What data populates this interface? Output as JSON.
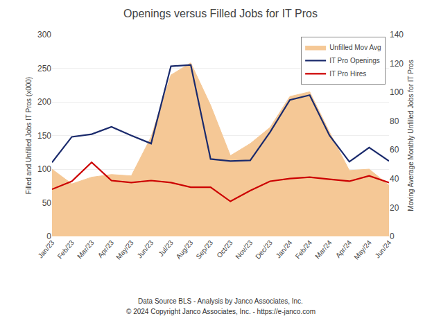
{
  "chart_data": {
    "type": "line",
    "title": "Openings versus Filled Jobs for IT Pros",
    "categories": [
      "Jan/23",
      "Feb/23",
      "Mar/23",
      "Apr/23",
      "May/23",
      "Jun/23",
      "Jul/23",
      "Aug/23",
      "Sep/23",
      "Oct/23",
      "Nov/23",
      "Dec/23",
      "Jan/24",
      "Feb/24",
      "Mar/24",
      "Apr/24",
      "May/24",
      "Jun/24"
    ],
    "ylabel": "Filled and Unfilled Jobs IT Pros (x000)",
    "y2label": "Moving Average Monthly Unfilled Jobs for IT Pros",
    "ylim": [
      0,
      300
    ],
    "yticks": [
      0,
      50,
      100,
      150,
      200,
      250,
      300
    ],
    "y2lim": [
      0,
      140
    ],
    "y2ticks": [
      0,
      20,
      40,
      60,
      80,
      100,
      120,
      140
    ],
    "grid": true,
    "legend": "upper right",
    "series": [
      {
        "name": "Unfilled Mov Avg",
        "type": "area",
        "color": "#f5c896",
        "values": [
          100,
          78,
          88,
          92,
          90,
          148,
          240,
          258,
          195,
          120,
          138,
          162,
          208,
          215,
          155,
          98,
          100,
          76
        ]
      },
      {
        "name": "IT Pro Openings",
        "type": "line",
        "color": "#1a2a6c",
        "values": [
          110,
          148,
          152,
          163,
          150,
          138,
          253,
          255,
          115,
          112,
          113,
          155,
          203,
          210,
          150,
          111,
          132,
          112
        ]
      },
      {
        "name": "IT Pro Hires",
        "type": "line",
        "color": "#cc0000",
        "values": [
          70,
          82,
          110,
          83,
          80,
          83,
          80,
          73,
          73,
          52,
          68,
          82,
          86,
          88,
          85,
          82,
          90,
          80
        ]
      }
    ],
    "annotations": [
      "Data Source BLS - Analysis by Janco Associates, Inc.",
      "© 2024 Copyright Janco Associates, Inc. - https://e-janco.com"
    ]
  }
}
